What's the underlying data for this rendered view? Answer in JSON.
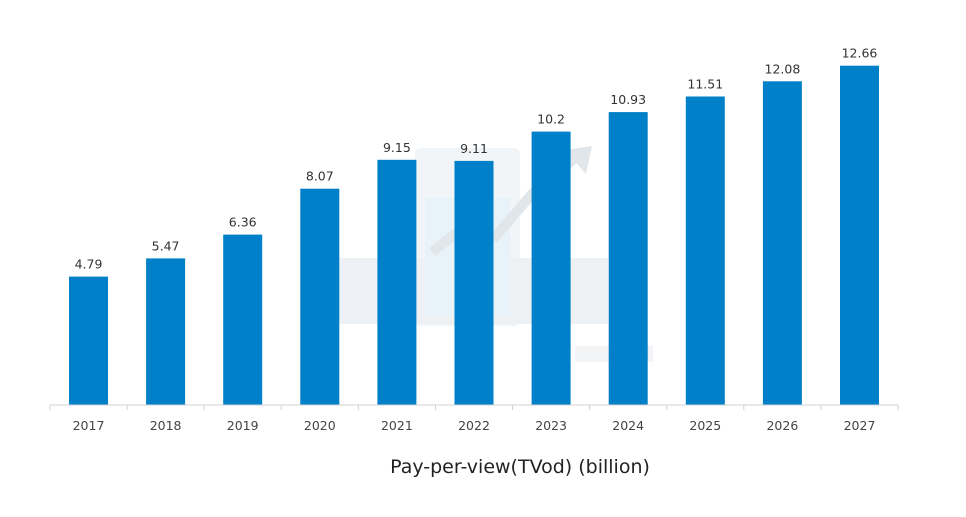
{
  "chart_data": {
    "type": "bar",
    "categories": [
      "2017",
      "2018",
      "2019",
      "2020",
      "2021",
      "2022",
      "2023",
      "2024",
      "2025",
      "2026",
      "2027"
    ],
    "values": [
      4.79,
      5.47,
      6.36,
      8.07,
      9.15,
      9.11,
      10.2,
      10.93,
      11.51,
      12.08,
      12.66
    ],
    "value_labels": [
      "4.79",
      "5.47",
      "6.36",
      "8.07",
      "9.15",
      "9.11",
      "10.2",
      "10.93",
      "11.51",
      "12.08",
      "12.66"
    ],
    "title": "",
    "xlabel": "Pay-per-view(TVod) (billion)",
    "ylabel": "",
    "ylim": [
      0,
      14
    ],
    "grid": false,
    "legend": "none",
    "bar_color": "#0080C8",
    "axis_color": "#D0D0D0"
  }
}
